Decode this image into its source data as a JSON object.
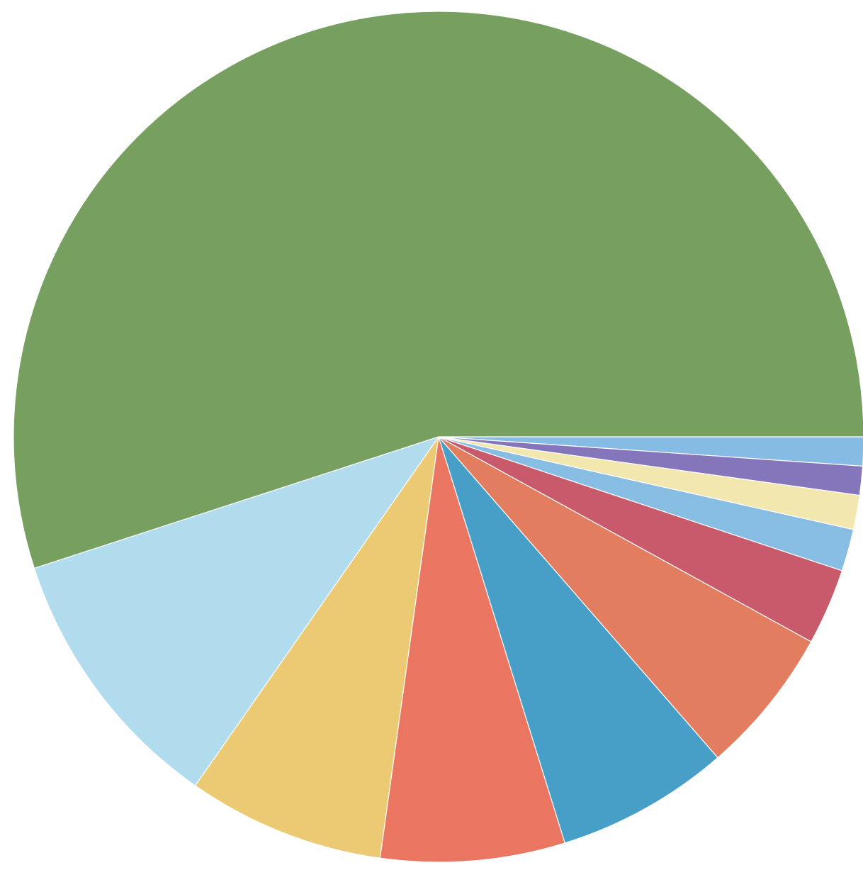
{
  "chart_data": {
    "type": "pie",
    "title": "",
    "start_angle_deg": 0,
    "direction": "clockwise",
    "slices": [
      {
        "value": 1.1,
        "color": "#86bce4"
      },
      {
        "value": 1.1,
        "color": "#8575bb"
      },
      {
        "value": 1.3,
        "color": "#f3e7b0"
      },
      {
        "value": 1.6,
        "color": "#87bde3"
      },
      {
        "value": 2.9,
        "color": "#c85a6b"
      },
      {
        "value": 5.6,
        "color": "#e27d5f"
      },
      {
        "value": 6.6,
        "color": "#479fc8"
      },
      {
        "value": 7.0,
        "color": "#ea7561"
      },
      {
        "value": 7.5,
        "color": "#ebca73"
      },
      {
        "value": 10.3,
        "color": "#b0dcee"
      },
      {
        "value": 55.0,
        "color": "#77a060"
      }
    ]
  }
}
